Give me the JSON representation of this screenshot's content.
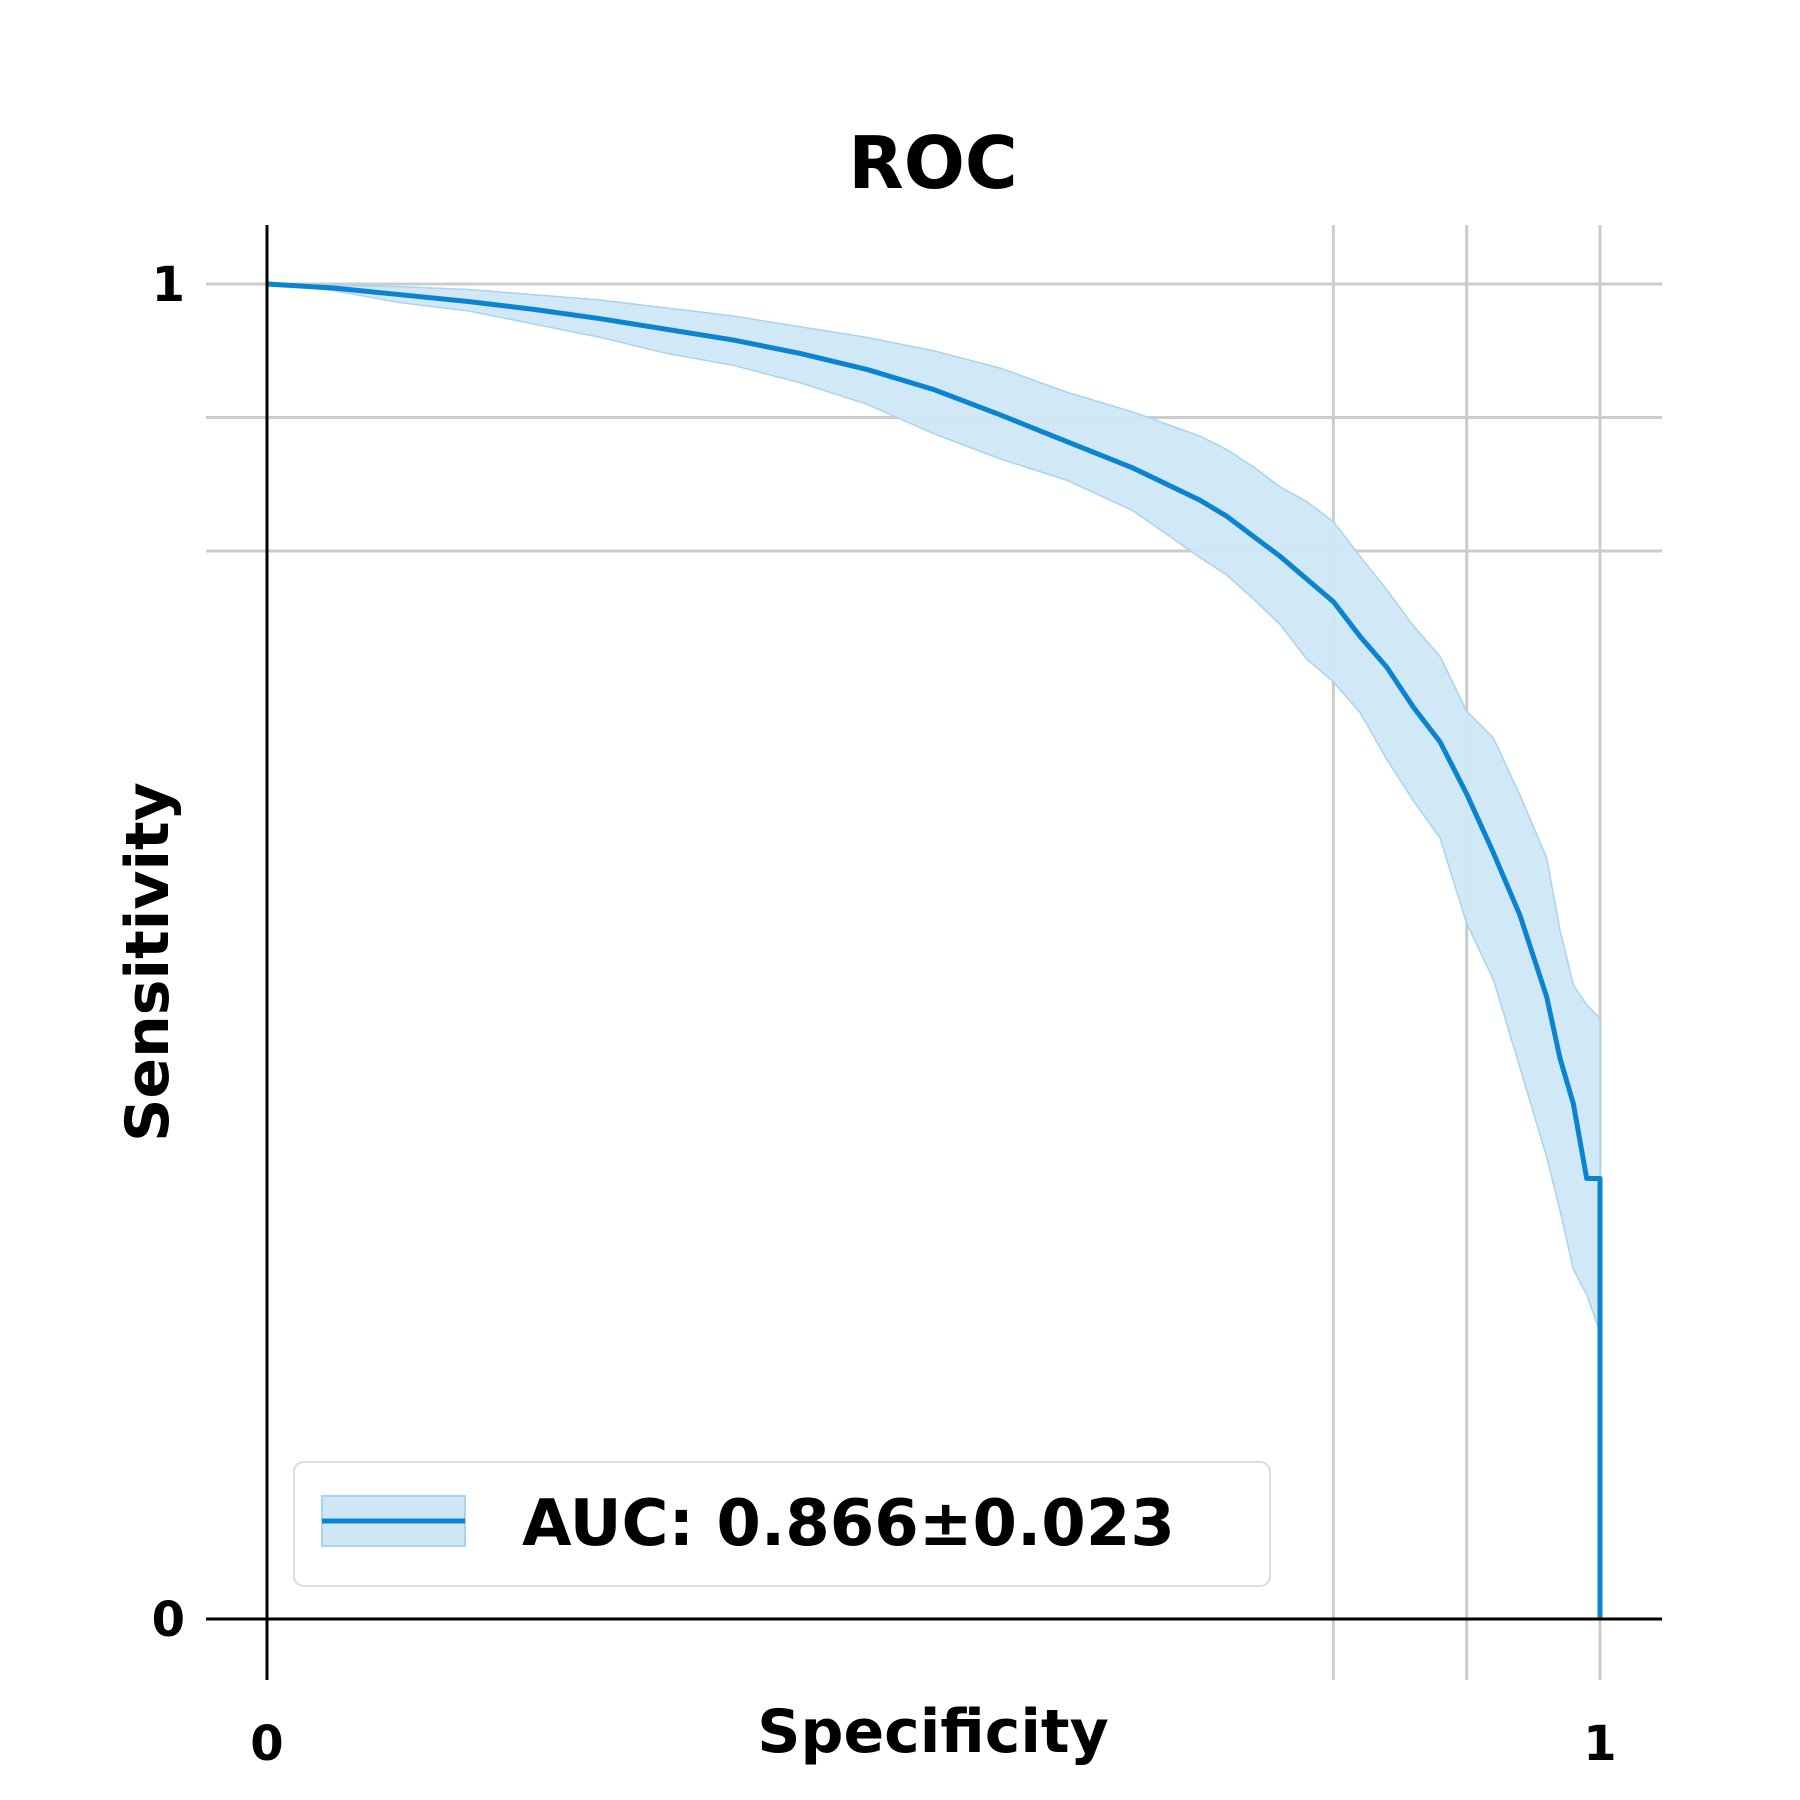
{
  "chart_data": {
    "type": "line",
    "title": "ROC",
    "xlabel": "Specificity",
    "ylabel": "Sensitivity",
    "xlim": [
      0,
      1
    ],
    "ylim": [
      0,
      1
    ],
    "x_ticks": [
      {
        "value": 0,
        "label": "0"
      },
      {
        "value": 1,
        "label": "1"
      }
    ],
    "y_ticks": [
      {
        "value": 0,
        "label": "0"
      },
      {
        "value": 1,
        "label": "1"
      }
    ],
    "grid": {
      "x_values": [
        0.8,
        0.9,
        1.0
      ],
      "y_values": [
        0.8,
        0.9,
        1.0
      ]
    },
    "legend": {
      "position": "bottom-left",
      "label": "AUC: 0.866±0.023"
    },
    "series": [
      {
        "name": "AUC: 0.866±0.023",
        "color": "#0a84d0",
        "band_color": "#cfe7f5",
        "band_edge_color": "#a9d3ee",
        "x": [
          0.0,
          0.05,
          0.1,
          0.15,
          0.2,
          0.25,
          0.3,
          0.35,
          0.4,
          0.45,
          0.5,
          0.55,
          0.6,
          0.65,
          0.7,
          0.72,
          0.74,
          0.76,
          0.78,
          0.8,
          0.82,
          0.84,
          0.86,
          0.88,
          0.9,
          0.92,
          0.94,
          0.96,
          0.97,
          0.98,
          0.99,
          1.0,
          1.0
        ],
        "y": [
          1.0,
          0.997,
          0.992,
          0.987,
          0.981,
          0.974,
          0.966,
          0.958,
          0.948,
          0.936,
          0.921,
          0.902,
          0.882,
          0.862,
          0.838,
          0.826,
          0.811,
          0.796,
          0.779,
          0.762,
          0.736,
          0.713,
          0.683,
          0.657,
          0.618,
          0.574,
          0.527,
          0.466,
          0.42,
          0.386,
          0.33,
          0.33,
          0.0
        ],
        "lower": [
          1.0,
          0.995,
          0.986,
          0.98,
          0.97,
          0.96,
          0.948,
          0.939,
          0.926,
          0.91,
          0.888,
          0.869,
          0.853,
          0.83,
          0.795,
          0.782,
          0.764,
          0.745,
          0.719,
          0.702,
          0.679,
          0.644,
          0.613,
          0.585,
          0.521,
          0.479,
          0.413,
          0.346,
          0.306,
          0.262,
          0.243,
          0.215,
          0.215
        ],
        "upper": [
          1.0,
          0.999,
          0.998,
          0.996,
          0.992,
          0.988,
          0.982,
          0.976,
          0.968,
          0.96,
          0.95,
          0.937,
          0.919,
          0.904,
          0.886,
          0.876,
          0.863,
          0.848,
          0.837,
          0.822,
          0.796,
          0.771,
          0.744,
          0.721,
          0.68,
          0.66,
          0.617,
          0.57,
          0.516,
          0.475,
          0.46,
          0.45,
          0.45
        ]
      }
    ]
  }
}
